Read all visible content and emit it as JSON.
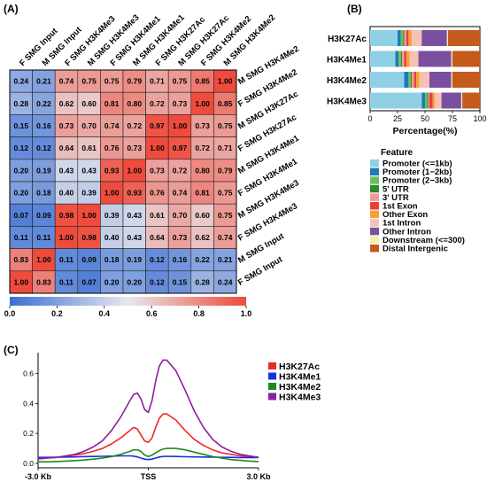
{
  "panels": {
    "a": "(A)",
    "b": "(B)",
    "c": "(C)"
  },
  "chart_data": [
    {
      "type": "heatmap",
      "panel": "(A)",
      "columns": [
        "F SMG Input",
        "M SMG Input",
        "F SMG H3K4Me3",
        "M SMG H3K4Me3",
        "F SMG H3K4Me1",
        "M SMG H3K4Me1",
        "F SMG H3K27Ac",
        "M SMG H3K27Ac",
        "F SMG H3K4Me2",
        "M SMG H3K4Me2"
      ],
      "rows": [
        "M SMG H3K4Me2",
        "F SMG H3K4Me2",
        "M SMG H3K27Ac",
        "F SMG H3K27Ac",
        "M SMG H3K4Me1",
        "F SMG H3K4Me1",
        "M SMG H3K4Me3",
        "F SMG H3K4Me3",
        "M SMG Input",
        "F SMG Input"
      ],
      "values": [
        [
          0.24,
          0.21,
          0.74,
          0.75,
          0.75,
          0.79,
          0.71,
          0.75,
          0.85,
          1.0
        ],
        [
          0.28,
          0.22,
          0.62,
          0.6,
          0.81,
          0.8,
          0.72,
          0.73,
          1.0,
          0.85
        ],
        [
          0.15,
          0.16,
          0.73,
          0.7,
          0.74,
          0.72,
          0.97,
          1.0,
          0.73,
          0.75
        ],
        [
          0.12,
          0.12,
          0.64,
          0.61,
          0.76,
          0.73,
          1.0,
          0.97,
          0.72,
          0.71
        ],
        [
          0.2,
          0.19,
          0.43,
          0.43,
          0.93,
          1.0,
          0.73,
          0.72,
          0.8,
          0.79
        ],
        [
          0.2,
          0.18,
          0.4,
          0.39,
          1.0,
          0.93,
          0.76,
          0.74,
          0.81,
          0.75
        ],
        [
          0.07,
          0.09,
          0.98,
          1.0,
          0.39,
          0.43,
          0.61,
          0.7,
          0.6,
          0.75
        ],
        [
          0.11,
          0.11,
          1.0,
          0.98,
          0.4,
          0.43,
          0.64,
          0.73,
          0.62,
          0.74
        ],
        [
          0.83,
          1.0,
          0.11,
          0.09,
          0.18,
          0.19,
          0.12,
          0.16,
          0.22,
          0.21
        ],
        [
          1.0,
          0.83,
          0.11,
          0.07,
          0.2,
          0.2,
          0.12,
          0.15,
          0.28,
          0.24
        ]
      ],
      "colorbar": {
        "ticks": [
          "0.0",
          "0.2",
          "0.4",
          "0.6",
          "0.8",
          "1.0"
        ],
        "low": "#3b6fd4",
        "mid": "#e8e8ec",
        "high": "#ef4b3c"
      }
    },
    {
      "type": "bar",
      "panel": "(B)",
      "stacked": true,
      "orientation": "horizontal",
      "categories": [
        "H3K27Ac",
        "H3K4Me1",
        "H3K4Me2",
        "H3K4Me3"
      ],
      "xlabel": "Percentage(%)",
      "xticks": [
        "0",
        "25",
        "50",
        "75",
        "100"
      ],
      "xlim": [
        0,
        100
      ],
      "legend_title": "Feature",
      "series": [
        {
          "name": "Promoter (<=1kb)",
          "color": "#8fd0e6",
          "values": [
            25,
            23,
            31,
            47
          ]
        },
        {
          "name": "Promoter (1−2kb)",
          "color": "#1f7ab5",
          "values": [
            3,
            3,
            4,
            3
          ]
        },
        {
          "name": "Promoter (2−3kb)",
          "color": "#6fbe5a",
          "values": [
            2,
            2,
            2,
            2
          ]
        },
        {
          "name": "5' UTR",
          "color": "#2d8a2d",
          "values": [
            1,
            1,
            1,
            1
          ]
        },
        {
          "name": "3' UTR",
          "color": "#f29a9a",
          "values": [
            2,
            2,
            2,
            1
          ]
        },
        {
          "name": "1st Exon",
          "color": "#e8413c",
          "values": [
            2,
            2,
            2,
            3
          ]
        },
        {
          "name": "Other Exon",
          "color": "#f7a13a",
          "values": [
            3,
            3,
            3,
            2
          ]
        },
        {
          "name": "1st Intron",
          "color": "#f5c2b6",
          "values": [
            9,
            8,
            9,
            6
          ]
        },
        {
          "name": "Other Intron",
          "color": "#7a4fa0",
          "values": [
            23,
            30,
            20,
            18
          ]
        },
        {
          "name": "Downstream (<=300)",
          "color": "#f7f0a8",
          "values": [
            1,
            1,
            1,
            1
          ]
        },
        {
          "name": "Distal Intergenic",
          "color": "#c45a1c",
          "values": [
            29,
            25,
            25,
            16
          ]
        }
      ]
    },
    {
      "type": "line",
      "panel": "(C)",
      "x": [
        -3,
        -2.75,
        -2.5,
        -2.25,
        -2,
        -1.75,
        -1.5,
        -1.25,
        -1,
        -0.75,
        -0.5,
        -0.4,
        -0.3,
        -0.2,
        -0.1,
        0,
        0.1,
        0.2,
        0.3,
        0.4,
        0.5,
        0.75,
        1,
        1.25,
        1.5,
        1.75,
        2,
        2.25,
        2.5,
        2.75,
        3
      ],
      "xticks": [
        {
          "value": -3,
          "label": "-3.0 Kb"
        },
        {
          "value": 0,
          "label": "TSS"
        },
        {
          "value": 3,
          "label": "3.0 Kb"
        }
      ],
      "yticks": [
        "0.0",
        "0.2",
        "0.4",
        "0.6"
      ],
      "ylim": [
        -0.03,
        0.74
      ],
      "series": [
        {
          "name": "H3K27Ac",
          "color": "#ee2a24",
          "values": [
            0.03,
            0.035,
            0.04,
            0.045,
            0.055,
            0.065,
            0.08,
            0.1,
            0.13,
            0.17,
            0.22,
            0.24,
            0.23,
            0.19,
            0.15,
            0.14,
            0.17,
            0.24,
            0.3,
            0.33,
            0.33,
            0.29,
            0.22,
            0.16,
            0.12,
            0.09,
            0.07,
            0.06,
            0.05,
            0.045,
            0.04
          ]
        },
        {
          "name": "H3K4Me1",
          "color": "#1a2ee0",
          "values": [
            0.04,
            0.04,
            0.041,
            0.042,
            0.043,
            0.045,
            0.046,
            0.047,
            0.048,
            0.05,
            0.05,
            0.048,
            0.043,
            0.035,
            0.028,
            0.025,
            0.028,
            0.035,
            0.042,
            0.046,
            0.047,
            0.046,
            0.044,
            0.043,
            0.042,
            0.041,
            0.04,
            0.04,
            0.039,
            0.039,
            0.038
          ]
        },
        {
          "name": "H3K4Me2",
          "color": "#1e8a1e",
          "values": [
            0.01,
            0.01,
            0.012,
            0.015,
            0.018,
            0.022,
            0.028,
            0.035,
            0.045,
            0.06,
            0.08,
            0.09,
            0.09,
            0.08,
            0.055,
            0.045,
            0.055,
            0.07,
            0.085,
            0.095,
            0.1,
            0.1,
            0.09,
            0.075,
            0.06,
            0.045,
            0.035,
            0.025,
            0.02,
            0.015,
            0.012
          ]
        },
        {
          "name": "H3K4Me3",
          "color": "#8f1ea0",
          "values": [
            0.03,
            0.035,
            0.04,
            0.05,
            0.06,
            0.08,
            0.11,
            0.15,
            0.22,
            0.31,
            0.42,
            0.46,
            0.47,
            0.43,
            0.36,
            0.34,
            0.42,
            0.55,
            0.65,
            0.69,
            0.69,
            0.62,
            0.49,
            0.35,
            0.24,
            0.16,
            0.11,
            0.08,
            0.06,
            0.05,
            0.04
          ]
        }
      ]
    }
  ]
}
